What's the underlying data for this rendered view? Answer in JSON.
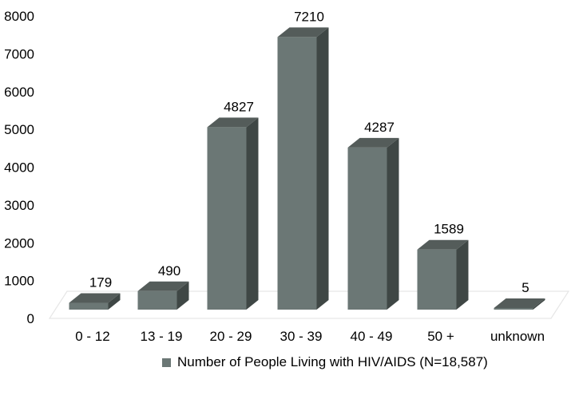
{
  "chart_data": {
    "type": "bar",
    "categories": [
      "0  - 12",
      "13 - 19",
      "20 - 29",
      "30 - 39",
      "40 - 49",
      "50 +",
      "unknown"
    ],
    "series": [
      {
        "name": "Number of People Living with HIV/AIDS (N=18,587)",
        "values": [
          179,
          490,
          4827,
          7210,
          4287,
          1589,
          5
        ]
      }
    ],
    "data_labels": [
      "179",
      "490",
      "4827",
      "7210",
      "4287",
      "1589",
      "5"
    ],
    "ylim": [
      0,
      8000
    ],
    "yticks": [
      "0",
      "1000",
      "2000",
      "3000",
      "4000",
      "5000",
      "6000",
      "7000",
      "8000"
    ],
    "ytick_values": [
      0,
      1000,
      2000,
      3000,
      4000,
      5000,
      6000,
      7000,
      8000
    ],
    "grid": false,
    "legend_position": "bottom",
    "style": "3d-column",
    "colors": {
      "front": "#6b7775",
      "side": "#3f4745",
      "top": "#545c5a",
      "floor": "#e6e6e6"
    }
  },
  "legend": {
    "label": "Number of People Living with HIV/AIDS (N=18,587)"
  }
}
